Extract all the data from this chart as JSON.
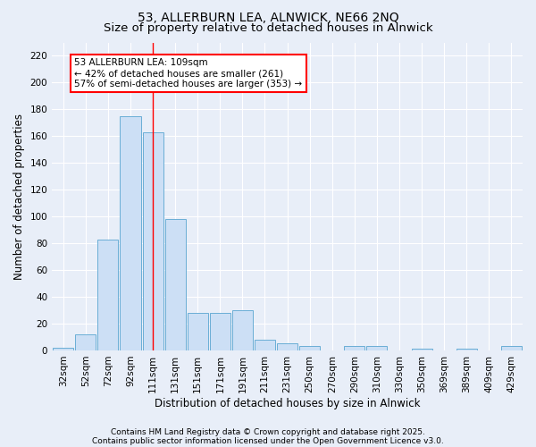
{
  "title_line1": "53, ALLERBURN LEA, ALNWICK, NE66 2NQ",
  "title_line2": "Size of property relative to detached houses in Alnwick",
  "xlabel": "Distribution of detached houses by size in Alnwick",
  "ylabel": "Number of detached properties",
  "categories": [
    "32sqm",
    "52sqm",
    "72sqm",
    "92sqm",
    "111sqm",
    "131sqm",
    "151sqm",
    "171sqm",
    "191sqm",
    "211sqm",
    "231sqm",
    "250sqm",
    "270sqm",
    "290sqm",
    "310sqm",
    "330sqm",
    "350sqm",
    "369sqm",
    "389sqm",
    "409sqm",
    "429sqm"
  ],
  "values": [
    2,
    12,
    83,
    175,
    163,
    98,
    28,
    28,
    30,
    8,
    5,
    3,
    0,
    3,
    3,
    0,
    1,
    0,
    1,
    0,
    3
  ],
  "bar_color": "#ccdff5",
  "bar_edge_color": "#6aaed6",
  "red_line_index": 4,
  "ylim": [
    0,
    230
  ],
  "yticks": [
    0,
    20,
    40,
    60,
    80,
    100,
    120,
    140,
    160,
    180,
    200,
    220
  ],
  "annotation_line1": "53 ALLERBURN LEA: 109sqm",
  "annotation_line2": "← 42% of detached houses are smaller (261)",
  "annotation_line3": "57% of semi-detached houses are larger (353) →",
  "footnote_line1": "Contains HM Land Registry data © Crown copyright and database right 2025.",
  "footnote_line2": "Contains public sector information licensed under the Open Government Licence v3.0.",
  "background_color": "#e8eef8",
  "grid_color": "#ffffff",
  "title_fontsize": 10,
  "title2_fontsize": 9.5,
  "axis_label_fontsize": 8.5,
  "tick_fontsize": 7.5,
  "annotation_fontsize": 7.5,
  "footnote_fontsize": 6.5
}
